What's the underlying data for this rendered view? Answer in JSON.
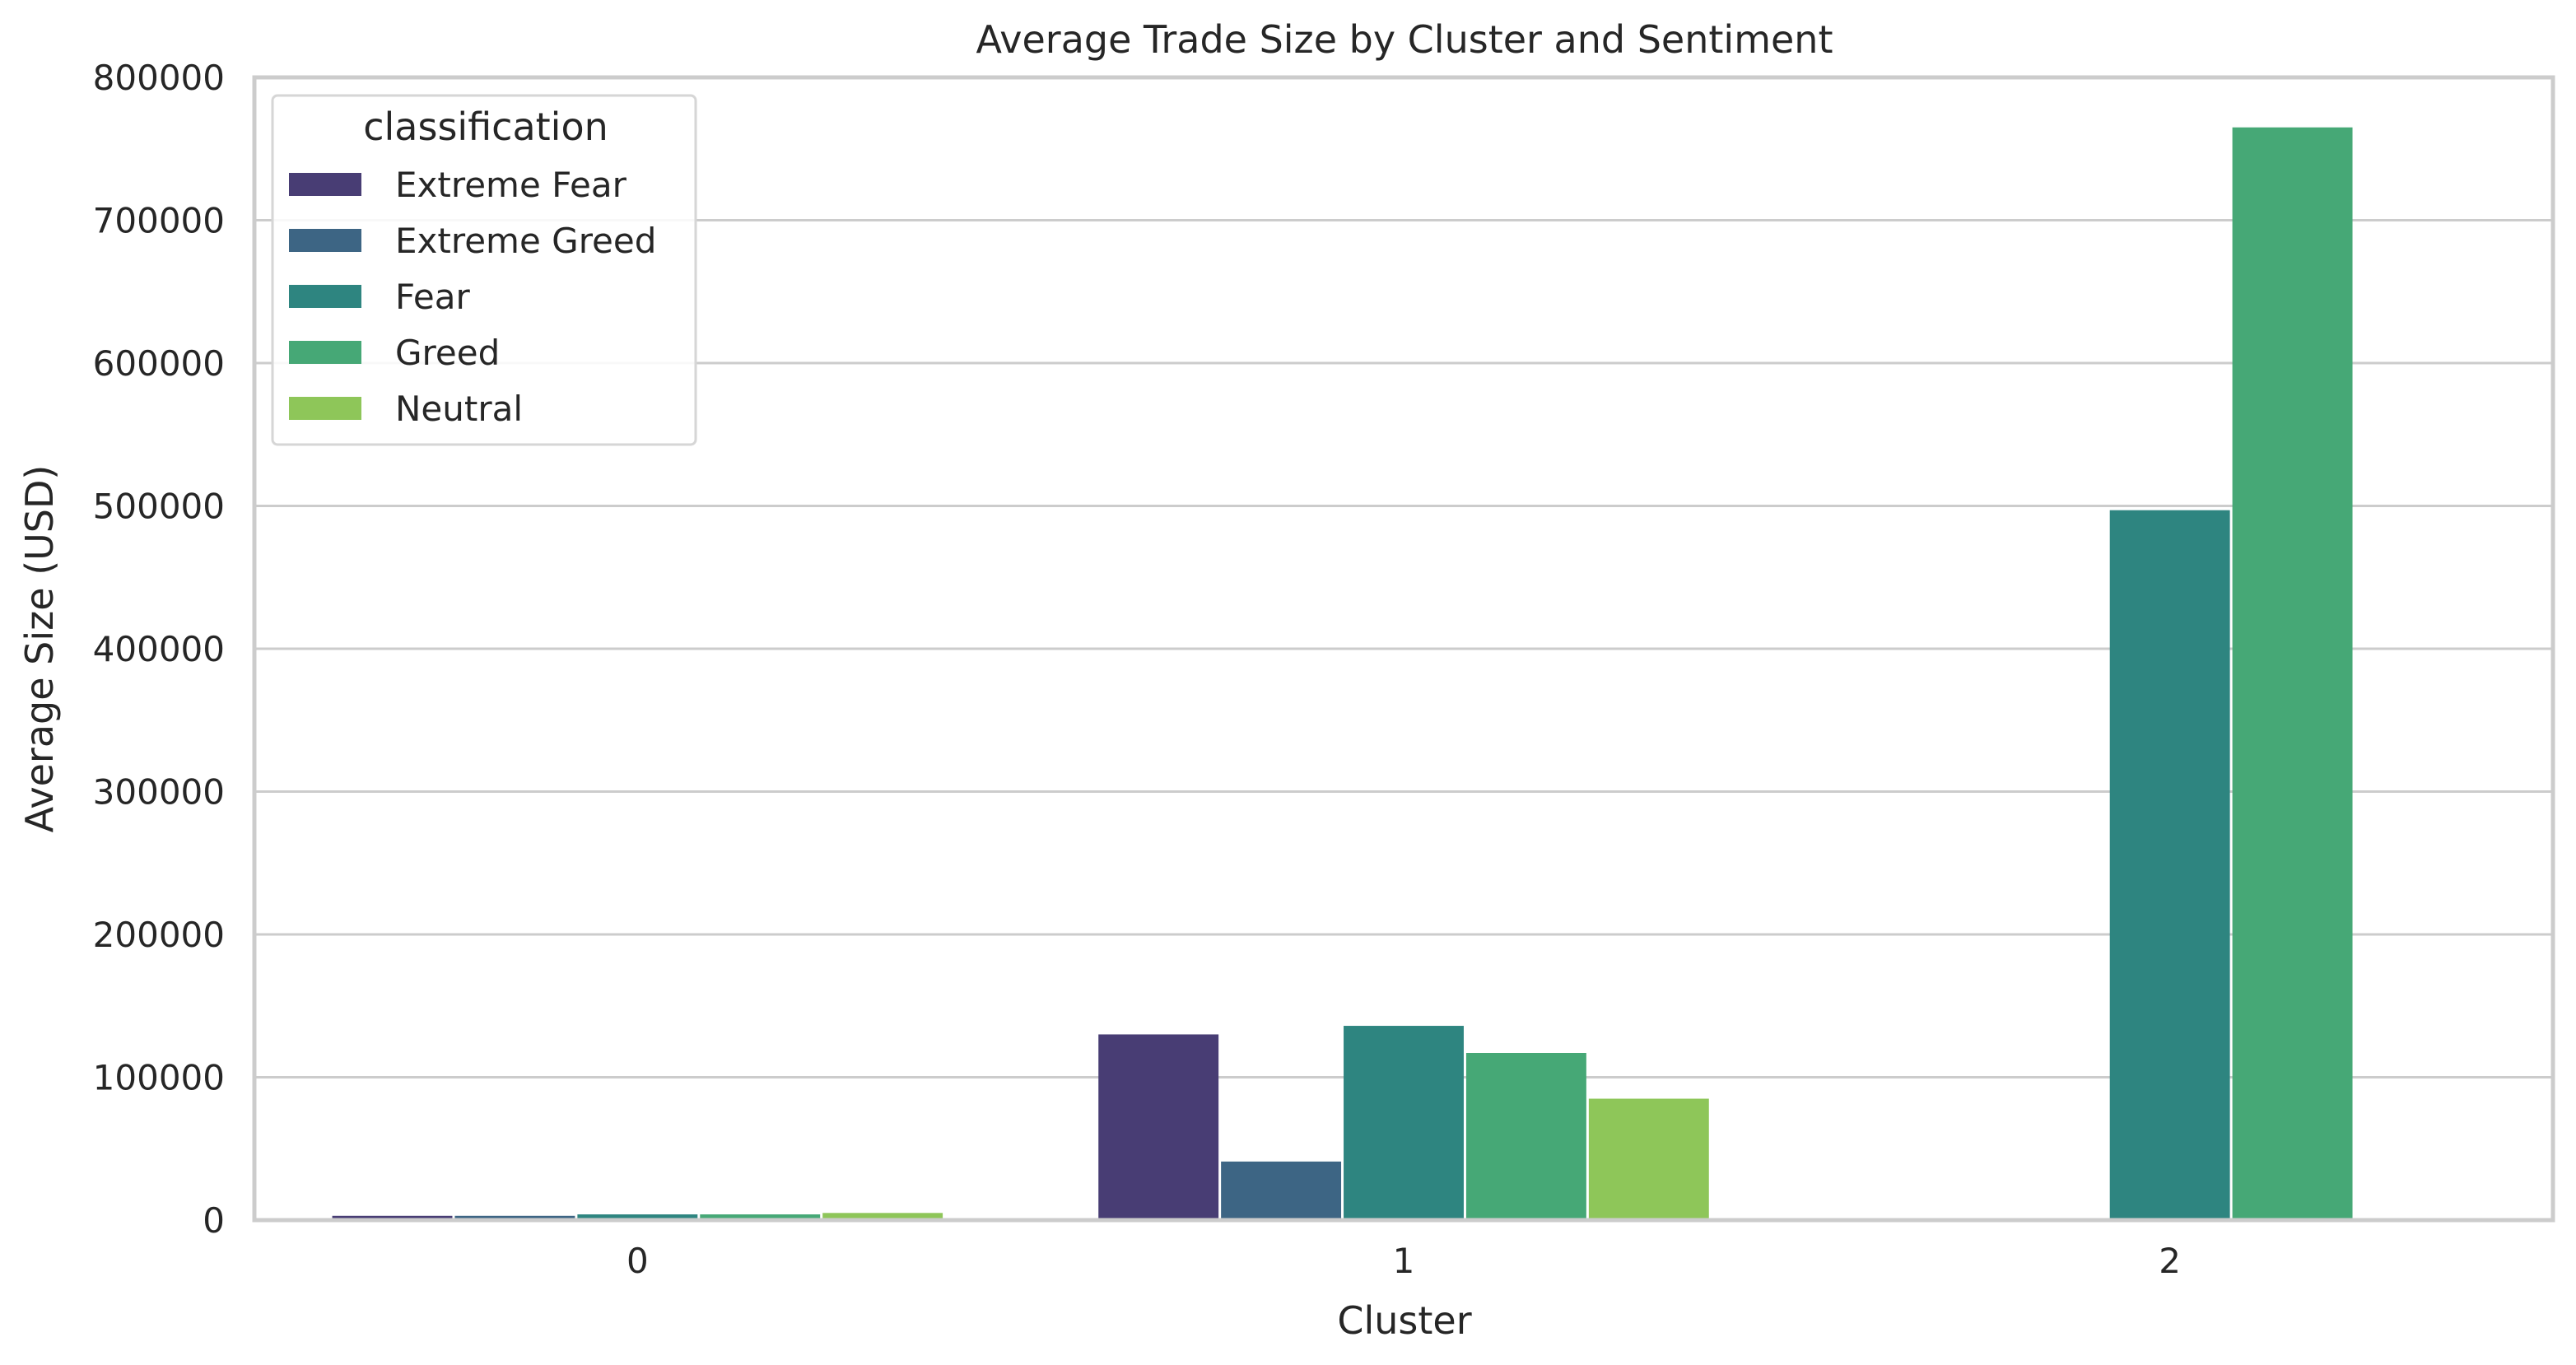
{
  "chart_data": {
    "type": "bar",
    "title": "Average Trade Size by Cluster and Sentiment",
    "xlabel": "Cluster",
    "ylabel": "Average Size (USD)",
    "categories": [
      "0",
      "1",
      "2"
    ],
    "ylim": [
      0,
      800000
    ],
    "yticks": [
      0,
      100000,
      200000,
      300000,
      400000,
      500000,
      600000,
      700000,
      800000
    ],
    "ytick_labels": [
      "0",
      "100000",
      "200000",
      "300000",
      "400000",
      "500000",
      "600000",
      "700000",
      "800000"
    ],
    "grid": "horizontal",
    "legend": {
      "title": "classification",
      "placement": "top-left"
    },
    "series": [
      {
        "name": "Extreme Fear",
        "color": "#483d74",
        "values": [
          3000,
          130000,
          0
        ]
      },
      {
        "name": "Extreme Greed",
        "color": "#3d6584",
        "values": [
          3000,
          41000,
          0
        ]
      },
      {
        "name": "Fear",
        "color": "#2e8580",
        "values": [
          4000,
          136000,
          497000
        ]
      },
      {
        "name": "Greed",
        "color": "#46a876",
        "values": [
          4000,
          117000,
          765000
        ]
      },
      {
        "name": "Neutral",
        "color": "#8ec659",
        "values": [
          5000,
          85000,
          0
        ]
      }
    ]
  }
}
